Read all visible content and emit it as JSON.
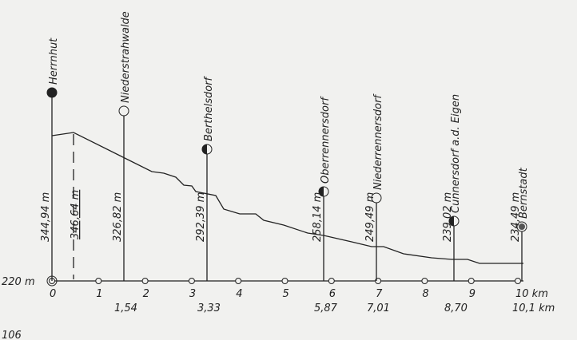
{
  "stations": [
    {
      "name": "Herrnhut",
      "elevation": "344,94 m"
    },
    {
      "name": "Niederstrahwalde",
      "elevation": "326,82 m",
      "km": "1,54"
    },
    {
      "name": "Berthelsdorf",
      "elevation": "292,39 m",
      "km": "3,33"
    },
    {
      "name": "Oberrennersdorf",
      "elevation": "258,14 m",
      "km": "5,87"
    },
    {
      "name": "Niederrennersdorf",
      "elevation": "249,49 m",
      "km": "7,01"
    },
    {
      "name": "Cunnersdorf a.d. Eigen",
      "elevation": "239,02 m",
      "km": "8,70"
    },
    {
      "name": "Bernstadt",
      "elevation": "234,49 m",
      "km": "10,1 km"
    }
  ],
  "summit_elevation": "346,64 m",
  "axis": {
    "origin_label": "220 m",
    "ticks": [
      "0",
      "1",
      "2",
      "3",
      "4",
      "5",
      "6",
      "7",
      "8",
      "9",
      "10 km"
    ]
  },
  "page_number": "106"
}
